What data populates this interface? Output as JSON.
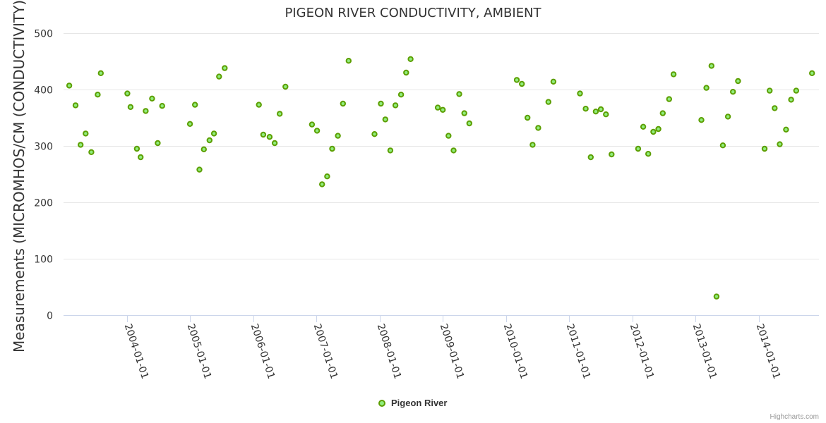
{
  "chart_data": {
    "type": "scatter",
    "title": "PIGEON RIVER CONDUCTIVITY, AMBIENT",
    "xlabel": "",
    "ylabel": "Measurements (MICROMHOS/CM (CONDUCTIVITY))",
    "ylim": [
      0,
      500
    ],
    "yticks": [
      0,
      100,
      200,
      300,
      400,
      500
    ],
    "xlim": [
      2003.0,
      2014.95
    ],
    "xticks": [
      {
        "value": 2004,
        "label": "2004-01-01"
      },
      {
        "value": 2005,
        "label": "2005-01-01"
      },
      {
        "value": 2006,
        "label": "2006-01-01"
      },
      {
        "value": 2007,
        "label": "2007-01-01"
      },
      {
        "value": 2008,
        "label": "2008-01-01"
      },
      {
        "value": 2009,
        "label": "2009-01-01"
      },
      {
        "value": 2010,
        "label": "2010-01-01"
      },
      {
        "value": 2011,
        "label": "2011-01-01"
      },
      {
        "value": 2012,
        "label": "2012-01-01"
      },
      {
        "value": 2013,
        "label": "2013-01-01"
      },
      {
        "value": 2014,
        "label": "2014-01-01"
      }
    ],
    "grid": true,
    "legend": {
      "position": "bottom-center",
      "entries": [
        "Pigeon River"
      ]
    },
    "series": [
      {
        "name": "Pigeon River",
        "color": "#90ed7d",
        "stroke": "#5c9e00",
        "points": [
          {
            "x": 2003.09,
            "y": 407
          },
          {
            "x": 2003.19,
            "y": 372
          },
          {
            "x": 2003.27,
            "y": 302
          },
          {
            "x": 2003.35,
            "y": 322
          },
          {
            "x": 2003.44,
            "y": 289
          },
          {
            "x": 2003.54,
            "y": 391
          },
          {
            "x": 2003.59,
            "y": 429
          },
          {
            "x": 2004.01,
            "y": 393
          },
          {
            "x": 2004.06,
            "y": 369
          },
          {
            "x": 2004.16,
            "y": 295
          },
          {
            "x": 2004.22,
            "y": 280
          },
          {
            "x": 2004.3,
            "y": 362
          },
          {
            "x": 2004.4,
            "y": 384
          },
          {
            "x": 2004.49,
            "y": 305
          },
          {
            "x": 2004.56,
            "y": 371
          },
          {
            "x": 2005.0,
            "y": 339
          },
          {
            "x": 2005.08,
            "y": 373
          },
          {
            "x": 2005.15,
            "y": 258
          },
          {
            "x": 2005.22,
            "y": 294
          },
          {
            "x": 2005.31,
            "y": 310
          },
          {
            "x": 2005.38,
            "y": 322
          },
          {
            "x": 2005.46,
            "y": 423
          },
          {
            "x": 2005.55,
            "y": 438
          },
          {
            "x": 2006.09,
            "y": 373
          },
          {
            "x": 2006.16,
            "y": 320
          },
          {
            "x": 2006.26,
            "y": 316
          },
          {
            "x": 2006.34,
            "y": 305
          },
          {
            "x": 2006.42,
            "y": 357
          },
          {
            "x": 2006.51,
            "y": 405
          },
          {
            "x": 2006.93,
            "y": 338
          },
          {
            "x": 2007.01,
            "y": 327
          },
          {
            "x": 2007.09,
            "y": 232
          },
          {
            "x": 2007.17,
            "y": 246
          },
          {
            "x": 2007.25,
            "y": 295
          },
          {
            "x": 2007.34,
            "y": 318
          },
          {
            "x": 2007.42,
            "y": 375
          },
          {
            "x": 2007.51,
            "y": 451
          },
          {
            "x": 2007.92,
            "y": 321
          },
          {
            "x": 2008.02,
            "y": 375
          },
          {
            "x": 2008.09,
            "y": 347
          },
          {
            "x": 2008.17,
            "y": 292
          },
          {
            "x": 2008.25,
            "y": 372
          },
          {
            "x": 2008.34,
            "y": 391
          },
          {
            "x": 2008.42,
            "y": 430
          },
          {
            "x": 2008.49,
            "y": 454
          },
          {
            "x": 2008.92,
            "y": 368
          },
          {
            "x": 2009.0,
            "y": 364
          },
          {
            "x": 2009.09,
            "y": 318
          },
          {
            "x": 2009.17,
            "y": 292
          },
          {
            "x": 2009.26,
            "y": 392
          },
          {
            "x": 2009.34,
            "y": 358
          },
          {
            "x": 2009.42,
            "y": 340
          },
          {
            "x": 2010.17,
            "y": 417
          },
          {
            "x": 2010.25,
            "y": 410
          },
          {
            "x": 2010.34,
            "y": 350
          },
          {
            "x": 2010.42,
            "y": 302
          },
          {
            "x": 2010.51,
            "y": 332
          },
          {
            "x": 2010.67,
            "y": 378
          },
          {
            "x": 2010.75,
            "y": 414
          },
          {
            "x": 2011.17,
            "y": 393
          },
          {
            "x": 2011.26,
            "y": 366
          },
          {
            "x": 2011.34,
            "y": 280
          },
          {
            "x": 2011.42,
            "y": 361
          },
          {
            "x": 2011.5,
            "y": 365
          },
          {
            "x": 2011.58,
            "y": 356
          },
          {
            "x": 2011.67,
            "y": 285
          },
          {
            "x": 2012.09,
            "y": 295
          },
          {
            "x": 2012.17,
            "y": 334
          },
          {
            "x": 2012.25,
            "y": 286
          },
          {
            "x": 2012.33,
            "y": 325
          },
          {
            "x": 2012.41,
            "y": 330
          },
          {
            "x": 2012.48,
            "y": 358
          },
          {
            "x": 2012.58,
            "y": 383
          },
          {
            "x": 2012.65,
            "y": 427
          },
          {
            "x": 2013.09,
            "y": 346
          },
          {
            "x": 2013.17,
            "y": 403
          },
          {
            "x": 2013.25,
            "y": 442
          },
          {
            "x": 2013.33,
            "y": 33
          },
          {
            "x": 2013.43,
            "y": 301
          },
          {
            "x": 2013.51,
            "y": 352
          },
          {
            "x": 2013.59,
            "y": 396
          },
          {
            "x": 2013.67,
            "y": 415
          },
          {
            "x": 2014.09,
            "y": 295
          },
          {
            "x": 2014.17,
            "y": 398
          },
          {
            "x": 2014.25,
            "y": 367
          },
          {
            "x": 2014.33,
            "y": 303
          },
          {
            "x": 2014.43,
            "y": 329
          },
          {
            "x": 2014.51,
            "y": 382
          },
          {
            "x": 2014.59,
            "y": 398
          },
          {
            "x": 2014.84,
            "y": 429
          }
        ]
      }
    ]
  },
  "credits": "Highcharts.com"
}
